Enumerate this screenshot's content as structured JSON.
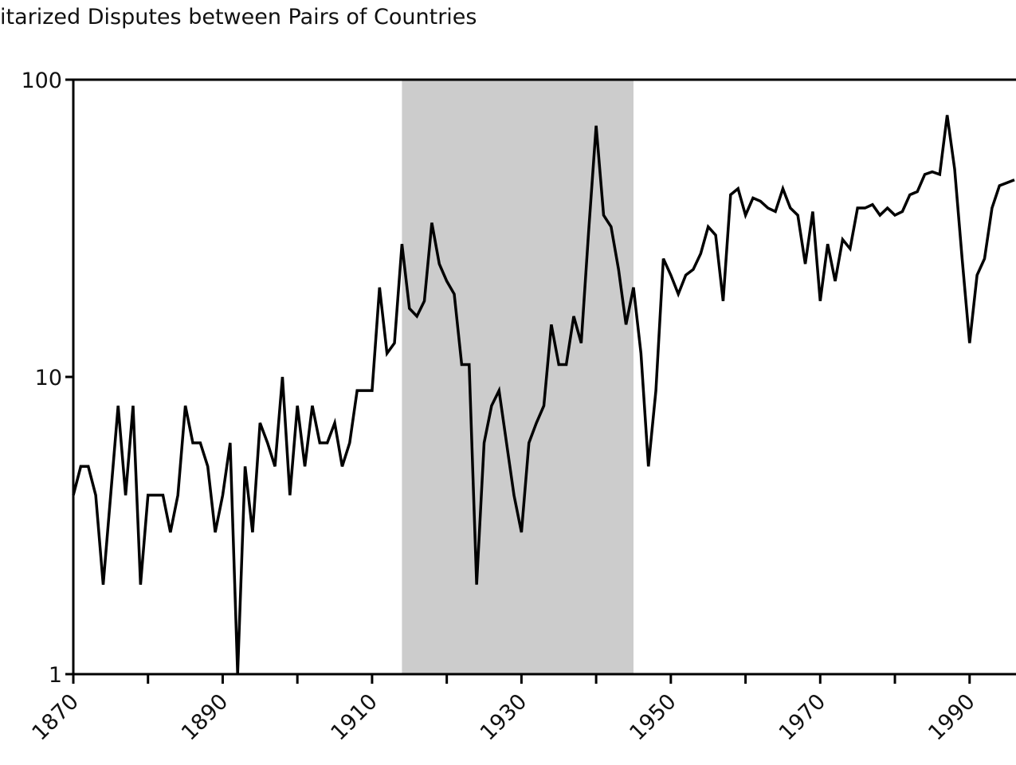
{
  "chart_data": {
    "type": "line",
    "title": "itarized Disputes between Pairs of Countries",
    "x": [
      1870,
      1871,
      1872,
      1873,
      1874,
      1875,
      1876,
      1877,
      1878,
      1879,
      1880,
      1881,
      1882,
      1883,
      1884,
      1885,
      1886,
      1887,
      1888,
      1889,
      1890,
      1891,
      1892,
      1893,
      1894,
      1895,
      1896,
      1897,
      1898,
      1899,
      1900,
      1901,
      1902,
      1903,
      1904,
      1905,
      1906,
      1907,
      1908,
      1909,
      1910,
      1911,
      1912,
      1913,
      1914,
      1915,
      1916,
      1917,
      1918,
      1919,
      1920,
      1921,
      1922,
      1923,
      1924,
      1925,
      1926,
      1927,
      1928,
      1929,
      1930,
      1931,
      1932,
      1933,
      1934,
      1935,
      1936,
      1937,
      1938,
      1939,
      1940,
      1941,
      1942,
      1943,
      1944,
      1945,
      1946,
      1947,
      1948,
      1949,
      1950,
      1951,
      1952,
      1953,
      1954,
      1955,
      1956,
      1957,
      1958,
      1959,
      1960,
      1961,
      1962,
      1963,
      1964,
      1965,
      1966,
      1967,
      1968,
      1969,
      1970,
      1971,
      1972,
      1973,
      1974,
      1975,
      1976,
      1977,
      1978,
      1979,
      1980,
      1981,
      1982,
      1983,
      1984,
      1985,
      1986,
      1987,
      1988,
      1989,
      1990,
      1991,
      1992,
      1993,
      1994,
      1995,
      1996
    ],
    "series": [
      {
        "name": "disputes",
        "color": "#000000",
        "values": [
          4,
          5,
          5,
          4,
          2,
          4,
          8,
          4,
          8,
          2,
          4,
          4,
          4,
          3,
          4,
          8,
          6,
          6,
          5,
          3,
          4,
          6,
          1,
          5,
          3,
          7,
          6,
          5,
          10,
          4,
          8,
          5,
          8,
          6,
          6,
          7,
          5,
          6,
          9,
          9,
          9,
          20,
          12,
          13,
          28,
          17,
          16,
          18,
          33,
          24,
          21,
          19,
          11,
          11,
          2,
          6,
          8,
          9,
          6,
          4,
          3,
          6,
          7,
          8,
          15,
          11,
          11,
          16,
          13,
          31,
          70,
          35,
          32,
          23,
          15,
          20,
          12,
          5,
          9,
          25,
          22,
          19,
          22,
          23,
          26,
          32,
          30,
          18,
          41,
          43,
          35,
          40,
          39,
          37,
          36,
          43,
          37,
          35,
          24,
          36,
          18,
          28,
          21,
          29,
          27,
          37,
          37,
          38,
          35,
          37,
          35,
          36,
          41,
          42,
          48,
          49,
          48,
          76,
          50,
          25,
          13,
          22,
          25,
          37,
          44,
          45,
          46
        ]
      }
    ],
    "xlim": [
      1870,
      1996
    ],
    "xticks": [
      1870,
      1890,
      1910,
      1930,
      1950,
      1970,
      1990
    ],
    "xminor_ticks": [
      1880,
      1900,
      1920,
      1940,
      1960,
      1980
    ],
    "ylim": [
      1,
      100
    ],
    "yticks": [
      1,
      10,
      100
    ],
    "log_scale_y": true,
    "shaded_span": [
      1914,
      1945
    ],
    "shade_color": "#cccccc"
  }
}
